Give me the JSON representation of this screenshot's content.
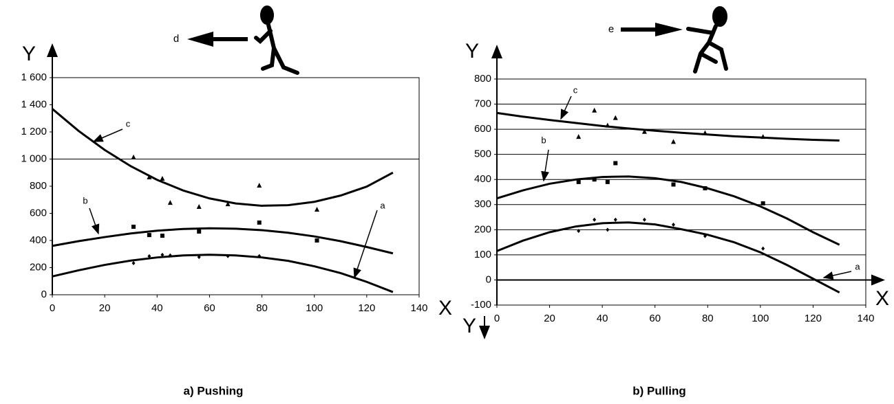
{
  "chart_data": [
    {
      "type": "scatter",
      "title": "a) Pushing",
      "x_label": "X",
      "y_label": "Y",
      "annotation": "d",
      "xlim": [
        0,
        140
      ],
      "xticks": [
        0,
        20,
        40,
        60,
        80,
        100,
        120,
        140
      ],
      "ylim": [
        0,
        1600
      ],
      "yticks": [
        0,
        200,
        400,
        600,
        800,
        {
          "value": 1000,
          "label": "1 000"
        },
        {
          "value": 1200,
          "label": "1 200"
        },
        {
          "value": 1400,
          "label": "1 400"
        },
        {
          "value": 1600,
          "label": "1 600"
        }
      ],
      "reference_lines": [
        1000
      ],
      "series": [
        {
          "name": "c",
          "color": "#000000",
          "marker": "triangle",
          "x": [
            0,
            10,
            20,
            30,
            40,
            50,
            60,
            70,
            80,
            90,
            100,
            110,
            120,
            130
          ],
          "values": [
            1370,
            1208,
            1067,
            947,
            847,
            768,
            710,
            673,
            656,
            660,
            685,
            731,
            797,
            900
          ],
          "points": {
            "x": [
              31,
              37,
              42,
              45,
              56,
              67,
              79,
              101
            ],
            "y": [
              1013,
              866,
              856,
              678,
              648,
              668,
              805,
              628
            ]
          }
        },
        {
          "name": "b",
          "color": "#000000",
          "marker": "square",
          "x": [
            0,
            10,
            20,
            30,
            40,
            50,
            60,
            70,
            80,
            90,
            100,
            110,
            120,
            130
          ],
          "values": [
            360,
            395,
            425,
            452,
            472,
            485,
            490,
            487,
            476,
            457,
            430,
            395,
            352,
            305
          ],
          "points": {
            "x": [
              31,
              37,
              42,
              56,
              79,
              101
            ],
            "y": [
              501,
              440,
              435,
              466,
              532,
              400
            ]
          }
        },
        {
          "name": "a",
          "color": "#000000",
          "marker": "diamond",
          "x": [
            0,
            10,
            20,
            30,
            40,
            50,
            60,
            70,
            80,
            90,
            100,
            110,
            120,
            130
          ],
          "values": [
            135,
            180,
            220,
            252,
            275,
            290,
            295,
            290,
            275,
            250,
            210,
            160,
            95,
            20
          ],
          "points": {
            "x": [
              31,
              37,
              42,
              45,
              56,
              67,
              79
            ],
            "y": [
              233,
              284,
              294,
              290,
              278,
              285,
              285
            ]
          }
        }
      ]
    },
    {
      "type": "scatter",
      "title": "b) Pulling",
      "x_label": "X",
      "y_label": "Y",
      "y_label_bottom": "Y",
      "annotation": "e",
      "xlim": [
        0,
        140
      ],
      "xticks": [
        0,
        20,
        40,
        60,
        80,
        100,
        120,
        140
      ],
      "ylim": [
        -100,
        800
      ],
      "yticks": [
        -100,
        0,
        100,
        200,
        300,
        400,
        500,
        600,
        700,
        800
      ],
      "grid": true,
      "series": [
        {
          "name": "c",
          "color": "#000000",
          "marker": "triangle",
          "x": [
            0,
            10,
            20,
            30,
            40,
            50,
            60,
            70,
            80,
            90,
            100,
            110,
            120,
            130
          ],
          "values": [
            665,
            650,
            637,
            625,
            613,
            603,
            594,
            586,
            579,
            572,
            567,
            562,
            558,
            555
          ],
          "points": {
            "x": [
              31,
              37,
              42,
              45,
              56,
              67,
              79,
              101
            ],
            "y": [
              570,
              675,
              615,
              645,
              590,
              550,
              585,
              570
            ]
          }
        },
        {
          "name": "b",
          "color": "#000000",
          "marker": "square",
          "x": [
            0,
            10,
            20,
            30,
            40,
            50,
            60,
            70,
            80,
            90,
            100,
            110,
            120,
            130
          ],
          "values": [
            325,
            357,
            383,
            400,
            410,
            412,
            405,
            390,
            365,
            333,
            293,
            245,
            190,
            140
          ],
          "points": {
            "x": [
              31,
              37,
              42,
              45,
              67,
              79,
              101
            ],
            "y": [
              390,
              400,
              390,
              465,
              380,
              365,
              305
            ]
          }
        },
        {
          "name": "a",
          "color": "#000000",
          "marker": "diamond",
          "x": [
            0,
            10,
            20,
            30,
            40,
            50,
            60,
            70,
            80,
            90,
            100,
            110,
            120,
            130
          ],
          "values": [
            115,
            157,
            190,
            213,
            226,
            229,
            221,
            202,
            180,
            150,
            110,
            60,
            5,
            -50
          ],
          "points": {
            "x": [
              31,
              37,
              42,
              45,
              56,
              67,
              79,
              101
            ],
            "y": [
              195,
              240,
              200,
              240,
              240,
              220,
              175,
              125
            ]
          }
        }
      ]
    }
  ]
}
